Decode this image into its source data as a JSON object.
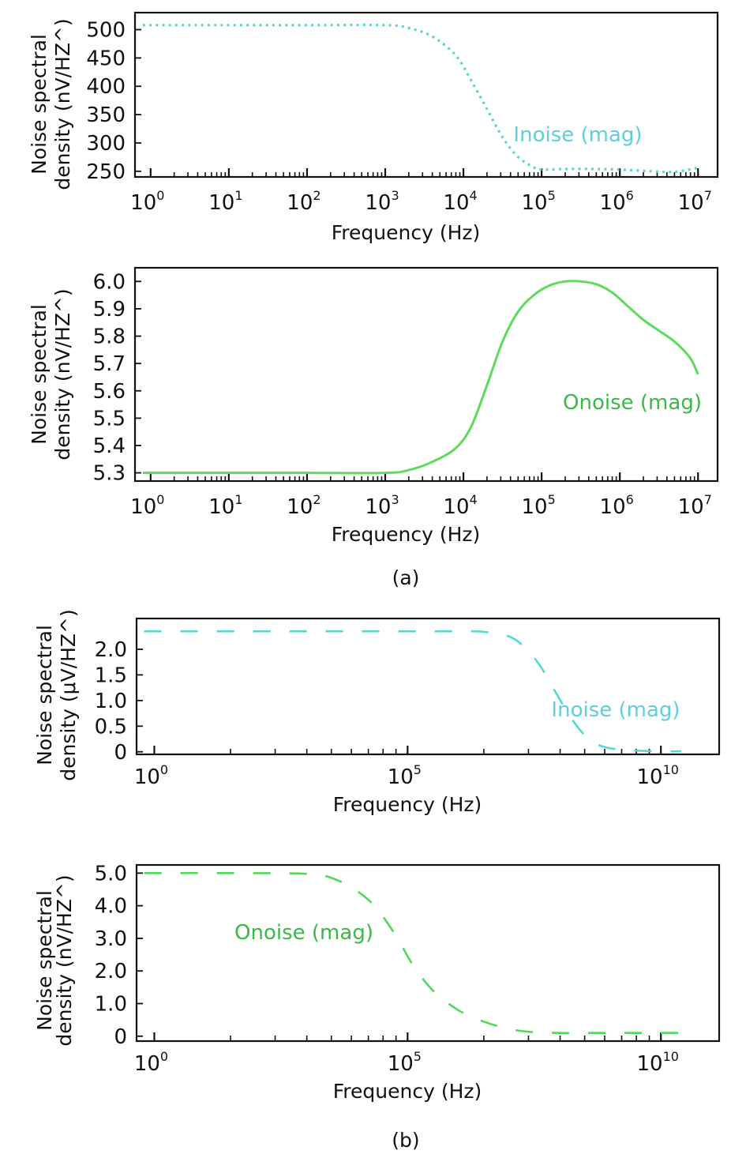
{
  "figure": {
    "captions": [
      "(a)",
      "(b)"
    ]
  },
  "chart_data": [
    {
      "type": "line",
      "panel": "a",
      "xscale": "log",
      "xlabel": "Frequency (Hz)",
      "ylabel_lines": [
        "Noise spectral",
        "density (nV/HZ^)"
      ],
      "xlim_log10": [
        -0.2,
        7.25
      ],
      "ylim": [
        240,
        530
      ],
      "xticks": [
        {
          "base": "10",
          "exp": "0",
          "log": 0
        },
        {
          "base": "10",
          "exp": "1",
          "log": 1
        },
        {
          "base": "10",
          "exp": "2",
          "log": 2
        },
        {
          "base": "10",
          "exp": "3",
          "log": 3
        },
        {
          "base": "10",
          "exp": "4",
          "log": 4
        },
        {
          "base": "10",
          "exp": "5",
          "log": 5
        },
        {
          "base": "10",
          "exp": "6",
          "log": 6
        },
        {
          "base": "10",
          "exp": "7",
          "log": 7
        }
      ],
      "minor_ticks": "decade",
      "yticks": [
        {
          "label": "500",
          "value": 500
        },
        {
          "label": "450",
          "value": 450
        },
        {
          "label": "400",
          "value": 400
        },
        {
          "label": "350",
          "value": 350
        },
        {
          "label": "300",
          "value": 300
        },
        {
          "label": "250",
          "value": 250
        }
      ],
      "grid": false,
      "series": [
        {
          "name": "Inoise (mag)",
          "color": "#5ad6d0",
          "style": "dotted",
          "x_log10": [
            -0.1,
            1,
            2,
            3,
            3.3,
            3.6,
            3.9,
            4.1,
            4.3,
            4.5,
            4.7,
            4.9,
            5.0,
            5.3,
            5.7,
            6.0,
            6.4,
            6.7,
            7.0
          ],
          "y": [
            508,
            508,
            508,
            508,
            503,
            488,
            455,
            410,
            360,
            310,
            275,
            257,
            253,
            254,
            254,
            253,
            250,
            249,
            256
          ]
        }
      ],
      "legend": {
        "text": "Inoise (mag)",
        "placement": "right-lower",
        "color": "#5fcfdc"
      }
    },
    {
      "type": "line",
      "panel": "a",
      "xscale": "log",
      "xlabel": "Frequency (Hz)",
      "ylabel_lines": [
        "Noise spectral",
        "density (nV/HZ^)"
      ],
      "xlim_log10": [
        -0.2,
        7.25
      ],
      "ylim": [
        5.27,
        6.05
      ],
      "xticks": [
        {
          "base": "10",
          "exp": "0",
          "log": 0
        },
        {
          "base": "10",
          "exp": "1",
          "log": 1
        },
        {
          "base": "10",
          "exp": "2",
          "log": 2
        },
        {
          "base": "10",
          "exp": "3",
          "log": 3
        },
        {
          "base": "10",
          "exp": "4",
          "log": 4
        },
        {
          "base": "10",
          "exp": "5",
          "log": 5
        },
        {
          "base": "10",
          "exp": "6",
          "log": 6
        },
        {
          "base": "10",
          "exp": "7",
          "log": 7
        }
      ],
      "minor_ticks": "decade",
      "yticks": [
        {
          "label": "6.0",
          "value": 6.0
        },
        {
          "label": "5.9",
          "value": 5.9
        },
        {
          "label": "5.8",
          "value": 5.8
        },
        {
          "label": "5.7",
          "value": 5.7
        },
        {
          "label": "5.6",
          "value": 5.6
        },
        {
          "label": "5.5",
          "value": 5.5
        },
        {
          "label": "5.4",
          "value": 5.4
        },
        {
          "label": "5.3",
          "value": 5.3
        }
      ],
      "grid": false,
      "series": [
        {
          "name": "Onoise (mag)",
          "color": "#5cdc5a",
          "style": "solid",
          "x_log10": [
            -0.1,
            1,
            2,
            3,
            3.3,
            3.6,
            3.9,
            4.1,
            4.3,
            4.5,
            4.7,
            4.9,
            5.1,
            5.3,
            5.5,
            5.7,
            5.9,
            6.1,
            6.3,
            6.5,
            6.7,
            6.9,
            7.0
          ],
          "y": [
            5.3,
            5.3,
            5.3,
            5.3,
            5.31,
            5.34,
            5.39,
            5.47,
            5.62,
            5.78,
            5.89,
            5.95,
            5.985,
            6.0,
            6.0,
            5.99,
            5.96,
            5.91,
            5.86,
            5.82,
            5.78,
            5.72,
            5.66
          ]
        }
      ],
      "legend": {
        "text": "Onoise (mag)",
        "placement": "right-middle",
        "color": "#3cb84a"
      }
    },
    {
      "type": "line",
      "panel": "b",
      "xscale": "log",
      "xlabel": "Frequency (Hz)",
      "ylabel_lines": [
        "Noise spectral",
        "density (μV/HZ^)"
      ],
      "xlim_log10": [
        -0.35,
        11.15
      ],
      "ylim": [
        -0.05,
        2.6
      ],
      "xticks": [
        {
          "base": "10",
          "exp": "0",
          "log": 0
        },
        {
          "base": "10",
          "exp": "5",
          "log": 5
        },
        {
          "base": "10",
          "exp": "10",
          "log": 10
        }
      ],
      "minor_ticks": "five-decade",
      "yticks": [
        {
          "label": "2.0",
          "value": 2.0
        },
        {
          "label": "1.5",
          "value": 1.5
        },
        {
          "label": "1.0",
          "value": 1.0
        },
        {
          "label": "0.5",
          "value": 0.5
        },
        {
          "label": "0",
          "value": 0
        }
      ],
      "grid": false,
      "series": [
        {
          "name": "Inoise (mag)",
          "color": "#4fdad6",
          "style": "dashed",
          "x_log10": [
            -0.2,
            2,
            4,
            6,
            6.5,
            7.0,
            7.3,
            7.6,
            7.9,
            8.2,
            8.5,
            8.8,
            9.2,
            9.6,
            10.0,
            10.4
          ],
          "y": [
            2.35,
            2.35,
            2.35,
            2.35,
            2.34,
            2.25,
            2.05,
            1.7,
            1.2,
            0.7,
            0.32,
            0.12,
            0.04,
            0.02,
            0.01,
            0.01
          ]
        }
      ],
      "legend": {
        "text": "Inoise (mag)",
        "placement": "right-lower",
        "color": "#5fcfdc"
      }
    },
    {
      "type": "line",
      "panel": "b",
      "xscale": "log",
      "xlabel": "Frequency (Hz)",
      "ylabel_lines": [
        "Noise spectral",
        "density (nV/HZ^)"
      ],
      "xlim_log10": [
        -0.35,
        11.15
      ],
      "ylim": [
        -0.15,
        5.25
      ],
      "xticks": [
        {
          "base": "10",
          "exp": "0",
          "log": 0
        },
        {
          "base": "10",
          "exp": "5",
          "log": 5
        },
        {
          "base": "10",
          "exp": "10",
          "log": 10
        }
      ],
      "minor_ticks": "five-decade",
      "yticks": [
        {
          "label": "5.0",
          "value": 5.0
        },
        {
          "label": "4.0",
          "value": 4.0
        },
        {
          "label": "3.0",
          "value": 3.0
        },
        {
          "label": "2.0",
          "value": 2.0
        },
        {
          "label": "1.0",
          "value": 1.0
        },
        {
          "label": "0",
          "value": 0
        }
      ],
      "grid": false,
      "series": [
        {
          "name": "Onoise (mag)",
          "color": "#4fd85a",
          "style": "dashed",
          "x_log10": [
            -0.2,
            1.5,
            3.0,
            3.5,
            4.0,
            4.4,
            4.8,
            5.1,
            5.5,
            6.0,
            6.5,
            7.0,
            7.5,
            8.0,
            9.0,
            10.0,
            10.4
          ],
          "y": [
            5.0,
            5.0,
            4.98,
            4.85,
            4.45,
            3.9,
            3.0,
            2.2,
            1.4,
            0.8,
            0.45,
            0.22,
            0.12,
            0.1,
            0.1,
            0.1,
            0.1
          ]
        }
      ],
      "legend": {
        "text": "Onoise (mag)",
        "placement": "center-left",
        "color": "#3cb84a"
      }
    }
  ]
}
